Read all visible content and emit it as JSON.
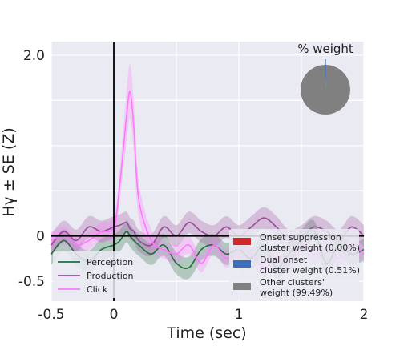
{
  "chart_data": {
    "type": "line",
    "title": "",
    "xlabel": "Time (sec)",
    "ylabel": "Hγ ± SE (Z)",
    "xlim": [
      -0.5,
      2.0
    ],
    "ylim": [
      -0.72,
      2.15
    ],
    "x_ticks": [
      -0.5,
      0,
      1,
      2
    ],
    "x_tick_labels": [
      "-0.5",
      "0",
      "1",
      "2"
    ],
    "y_ticks": [
      -0.5,
      0,
      2.0
    ],
    "y_tick_labels": [
      "-0.5",
      "0",
      "2.0"
    ],
    "grid": true,
    "reference_lines": {
      "x": 0,
      "y": 0
    },
    "x": [
      -0.5,
      -0.4,
      -0.3,
      -0.2,
      -0.1,
      0.0,
      0.05,
      0.1,
      0.13,
      0.16,
      0.2,
      0.3,
      0.4,
      0.5,
      0.6,
      0.7,
      0.8,
      0.9,
      1.0,
      1.1,
      1.2,
      1.3,
      1.4,
      1.5,
      1.6,
      1.7,
      1.8,
      1.9,
      2.0
    ],
    "series": [
      {
        "name": "Perception",
        "color": "#1f6e3c",
        "values": [
          -0.2,
          -0.05,
          -0.2,
          -0.28,
          -0.15,
          -0.1,
          -0.05,
          0.05,
          0.0,
          -0.05,
          -0.1,
          -0.2,
          -0.1,
          -0.3,
          -0.35,
          -0.15,
          -0.1,
          -0.2,
          -0.15,
          -0.25,
          -0.1,
          -0.35,
          -0.2,
          -0.05,
          0.05,
          -0.3,
          -0.1,
          -0.2,
          -0.15
        ],
        "se": [
          0.12,
          0.12,
          0.12,
          0.12,
          0.12,
          0.12,
          0.12,
          0.12,
          0.12,
          0.12,
          0.12,
          0.12,
          0.12,
          0.12,
          0.12,
          0.12,
          0.12,
          0.12,
          0.12,
          0.12,
          0.12,
          0.12,
          0.12,
          0.12,
          0.12,
          0.12,
          0.12,
          0.12,
          0.12
        ]
      },
      {
        "name": "Production",
        "color": "#9a4a9a",
        "values": [
          -0.1,
          0.05,
          -0.05,
          0.1,
          0.05,
          0.1,
          0.12,
          0.15,
          0.08,
          0.05,
          -0.05,
          -0.1,
          0.1,
          0.0,
          0.15,
          0.05,
          0.0,
          0.1,
          0.0,
          0.1,
          0.2,
          0.1,
          -0.05,
          0.0,
          0.1,
          0.05,
          -0.05,
          0.1,
          0.0
        ],
        "se": [
          0.12,
          0.12,
          0.12,
          0.12,
          0.12,
          0.12,
          0.12,
          0.12,
          0.12,
          0.12,
          0.12,
          0.12,
          0.12,
          0.12,
          0.12,
          0.12,
          0.12,
          0.12,
          0.12,
          0.12,
          0.12,
          0.12,
          0.12,
          0.12,
          0.12,
          0.12,
          0.12,
          0.12,
          0.12
        ]
      },
      {
        "name": "Click",
        "color": "#ff77ff",
        "values": [
          -0.05,
          0.0,
          -0.1,
          -0.05,
          0.05,
          0.1,
          0.6,
          1.3,
          1.6,
          1.2,
          0.4,
          -0.05,
          -0.15,
          -0.2,
          -0.1,
          -0.3,
          -0.1,
          -0.25,
          -0.15,
          -0.2,
          -0.35,
          -0.25,
          -0.3,
          -0.1,
          -0.2,
          -0.15,
          -0.25,
          -0.1,
          -0.2
        ],
        "se": [
          0.1,
          0.1,
          0.1,
          0.1,
          0.1,
          0.12,
          0.18,
          0.28,
          0.3,
          0.28,
          0.2,
          0.12,
          0.1,
          0.1,
          0.1,
          0.1,
          0.1,
          0.1,
          0.1,
          0.1,
          0.1,
          0.1,
          0.1,
          0.1,
          0.1,
          0.1,
          0.1,
          0.1,
          0.1
        ]
      }
    ],
    "legend": {
      "placement": "bottom-left",
      "entries": [
        "Perception",
        "Production",
        "Click"
      ]
    },
    "inset_pie": {
      "type": "pie",
      "title": "% weight",
      "placement": "top-right",
      "slices": [
        {
          "label": "Onset suppression\ncluster weight (0.00%)",
          "value": 0.0,
          "color": "#d62728"
        },
        {
          "label": "Dual onset\ncluster weight (0.51%)",
          "value": 0.51,
          "color": "#3b6fba"
        },
        {
          "label": "Other clusters'\nweight (99.49%)",
          "value": 99.49,
          "color": "#808080"
        }
      ],
      "legend_lines": [
        [
          "Onset suppression",
          "cluster weight (0.00%)"
        ],
        [
          "Dual onset",
          "cluster weight (0.51%)"
        ],
        [
          "Other clusters'",
          "weight (99.49%)"
        ]
      ]
    }
  }
}
